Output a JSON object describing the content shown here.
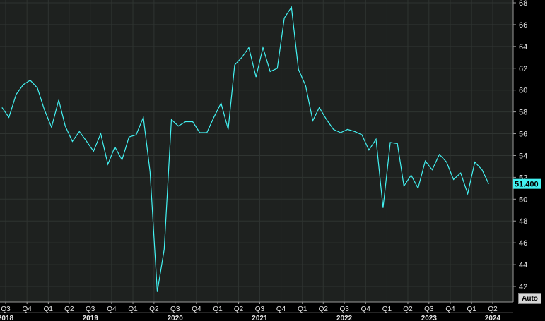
{
  "colors": {
    "background": "#000000",
    "plot_background": "#1e211f",
    "grid": "#2f3431",
    "line": "#43f2f2",
    "axis_text": "#e6e6e6"
  },
  "controls": {
    "auto_label": "Auto"
  },
  "chart_data": {
    "type": "line",
    "title": "",
    "xlabel": "",
    "ylabel": "",
    "ylim": [
      41,
      68
    ],
    "y_ticks": [
      42,
      44,
      46,
      48,
      50,
      52,
      54,
      56,
      58,
      60,
      62,
      64,
      66,
      68
    ],
    "grid": true,
    "last_value_label": "51.400",
    "x_ticks": [
      {
        "label": "Q3",
        "date": "2018-07-01"
      },
      {
        "label": "Q4",
        "date": "2018-10-01"
      },
      {
        "label": "Q1",
        "date": "2019-01-01"
      },
      {
        "label": "Q2",
        "date": "2019-04-01"
      },
      {
        "label": "Q3",
        "date": "2019-07-01"
      },
      {
        "label": "Q4",
        "date": "2019-10-01"
      },
      {
        "label": "Q1",
        "date": "2020-01-01"
      },
      {
        "label": "Q2",
        "date": "2020-04-01"
      },
      {
        "label": "Q3",
        "date": "2020-07-01"
      },
      {
        "label": "Q4",
        "date": "2020-10-01"
      },
      {
        "label": "Q1",
        "date": "2021-01-01"
      },
      {
        "label": "Q2",
        "date": "2021-04-01"
      },
      {
        "label": "Q3",
        "date": "2021-07-01"
      },
      {
        "label": "Q4",
        "date": "2021-10-01"
      },
      {
        "label": "Q1",
        "date": "2022-01-01"
      },
      {
        "label": "Q2",
        "date": "2022-04-01"
      },
      {
        "label": "Q3",
        "date": "2022-07-01"
      },
      {
        "label": "Q4",
        "date": "2022-10-01"
      },
      {
        "label": "Q1",
        "date": "2023-01-01"
      },
      {
        "label": "Q2",
        "date": "2023-04-01"
      },
      {
        "label": "Q3",
        "date": "2023-07-01"
      },
      {
        "label": "Q4",
        "date": "2023-10-01"
      },
      {
        "label": "Q1",
        "date": "2024-01-01"
      },
      {
        "label": "Q2",
        "date": "2024-04-01"
      }
    ],
    "year_labels": [
      {
        "label": "2018",
        "date": "2018-07-01"
      },
      {
        "label": "2019",
        "date": "2019-07-01"
      },
      {
        "label": "2020",
        "date": "2020-07-01"
      },
      {
        "label": "2021",
        "date": "2021-07-01"
      },
      {
        "label": "2022",
        "date": "2022-07-01"
      },
      {
        "label": "2023",
        "date": "2023-07-01"
      },
      {
        "label": "2024",
        "date": "2024-04-01"
      }
    ],
    "series": [
      {
        "x": [
          "2018-06",
          "2018-07",
          "2018-08",
          "2018-09",
          "2018-10",
          "2018-11",
          "2018-12",
          "2019-01",
          "2019-02",
          "2019-03",
          "2019-04",
          "2019-05",
          "2019-06",
          "2019-07",
          "2019-08",
          "2019-09",
          "2019-10",
          "2019-11",
          "2019-12",
          "2020-01",
          "2020-02",
          "2020-03",
          "2020-04",
          "2020-05",
          "2020-06",
          "2020-07",
          "2020-08",
          "2020-09",
          "2020-10",
          "2020-11",
          "2020-12",
          "2021-01",
          "2021-02",
          "2021-03",
          "2021-04",
          "2021-05",
          "2021-06",
          "2021-07",
          "2021-08",
          "2021-09",
          "2021-10",
          "2021-11",
          "2021-12",
          "2022-01",
          "2022-02",
          "2022-03",
          "2022-04",
          "2022-05",
          "2022-06",
          "2022-07",
          "2022-08",
          "2022-09",
          "2022-10",
          "2022-11",
          "2022-12",
          "2023-01",
          "2023-02",
          "2023-03",
          "2023-04",
          "2023-05",
          "2023-06",
          "2023-07",
          "2023-08",
          "2023-09",
          "2023-10",
          "2023-11",
          "2023-12",
          "2024-01",
          "2024-02",
          "2024-03"
        ],
        "y": [
          58.4,
          57.5,
          59.6,
          60.5,
          60.9,
          60.2,
          58.2,
          56.6,
          59.1,
          56.7,
          55.3,
          56.2,
          55.3,
          54.4,
          56.0,
          53.2,
          54.8,
          53.6,
          55.7,
          55.9,
          57.5,
          52.5,
          41.5,
          45.4,
          57.3,
          56.7,
          57.1,
          57.1,
          56.1,
          56.1,
          57.5,
          58.8,
          56.4,
          62.3,
          63.0,
          63.9,
          61.2,
          63.9,
          61.7,
          62.0,
          66.6,
          67.6,
          61.9,
          60.4,
          57.2,
          58.4,
          57.3,
          56.4,
          56.1,
          56.4,
          56.2,
          55.9,
          54.5,
          55.5,
          49.2,
          55.2,
          55.1,
          51.2,
          52.2,
          51.0,
          53.5,
          52.7,
          54.1,
          53.4,
          51.8,
          52.4,
          50.5,
          53.4,
          52.7,
          51.4
        ]
      }
    ]
  }
}
